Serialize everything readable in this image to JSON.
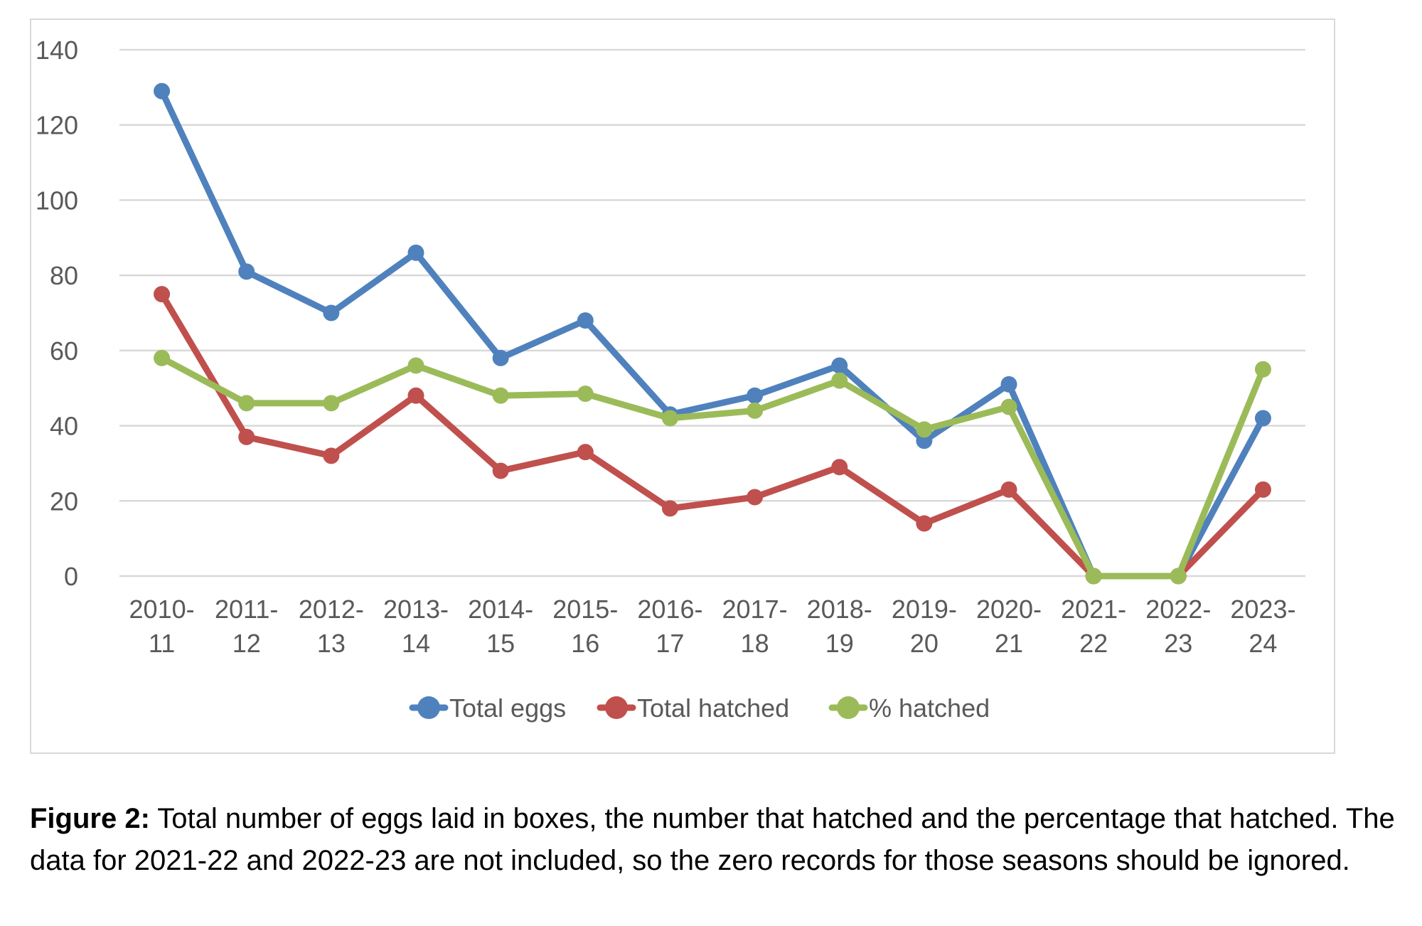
{
  "chart_data": {
    "type": "line",
    "categories": [
      [
        "2010-",
        "11"
      ],
      [
        "2011-",
        "12"
      ],
      [
        "2012-",
        "13"
      ],
      [
        "2013-",
        "14"
      ],
      [
        "2014-",
        "15"
      ],
      [
        "2015-",
        "16"
      ],
      [
        "2016-",
        "17"
      ],
      [
        "2017-",
        "18"
      ],
      [
        "2018-",
        "19"
      ],
      [
        "2019-",
        "20"
      ],
      [
        "2020-",
        "21"
      ],
      [
        "2021-",
        "22"
      ],
      [
        "2022-",
        "23"
      ],
      [
        "2023-",
        "24"
      ]
    ],
    "series": [
      {
        "name": "Total eggs",
        "color": "#4f81bd",
        "values": [
          129,
          81,
          70,
          86,
          58,
          68,
          43,
          48,
          56,
          36,
          51,
          0,
          0,
          42
        ]
      },
      {
        "name": "Total hatched",
        "color": "#c0504d",
        "values": [
          75,
          37,
          32,
          48,
          28,
          33,
          18,
          21,
          29,
          14,
          23,
          0,
          0,
          23
        ]
      },
      {
        "name": "% hatched",
        "color": "#9bbb59",
        "values": [
          58,
          46,
          46,
          56,
          48,
          48.5,
          42,
          44,
          52,
          39,
          45,
          0,
          0,
          55
        ]
      }
    ],
    "yticks": [
      "0",
      "20",
      "40",
      "60",
      "80",
      "100",
      "120",
      "140"
    ],
    "ylim": [
      0,
      140
    ],
    "grid": true,
    "legend": "bottom"
  },
  "caption": {
    "label": "Figure 2:",
    "text": " Total number of eggs laid in boxes, the number that hatched and the percentage that hatched. The data for 2021-22 and 2022-23 are not included, so the zero records for those seasons should be ignored."
  }
}
